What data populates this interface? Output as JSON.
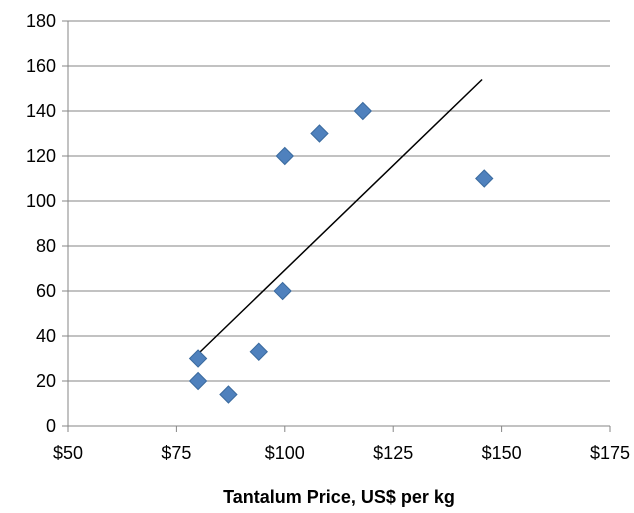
{
  "chart_data": {
    "type": "scatter",
    "xlabel": "Tantalum Price, US$ per kg",
    "ylabel": "",
    "xlim": [
      50,
      175
    ],
    "ylim": [
      0,
      180
    ],
    "x_ticks": [
      50,
      75,
      100,
      125,
      150,
      175
    ],
    "x_tick_labels": [
      "$50",
      "$75",
      "$100",
      "$125",
      "$150",
      "$175"
    ],
    "y_ticks": [
      0,
      20,
      40,
      60,
      80,
      100,
      120,
      140,
      160,
      180
    ],
    "y_tick_labels": [
      "0",
      "20",
      "40",
      "60",
      "80",
      "100",
      "120",
      "140",
      "160",
      "180"
    ],
    "grid": "horizontal",
    "series": [
      {
        "marker": "diamond",
        "color": "#4F81BD",
        "points": [
          {
            "x": 80,
            "y": 20
          },
          {
            "x": 80,
            "y": 30
          },
          {
            "x": 87,
            "y": 14
          },
          {
            "x": 94,
            "y": 33
          },
          {
            "x": 99.5,
            "y": 60
          },
          {
            "x": 100,
            "y": 120
          },
          {
            "x": 108,
            "y": 130
          },
          {
            "x": 118,
            "y": 140
          },
          {
            "x": 146,
            "y": 110
          }
        ]
      }
    ],
    "trendline": {
      "type": "linear",
      "color": "#000000",
      "from": {
        "x": 80.5,
        "y": 33
      },
      "to": {
        "x": 145.5,
        "y": 154
      }
    }
  }
}
